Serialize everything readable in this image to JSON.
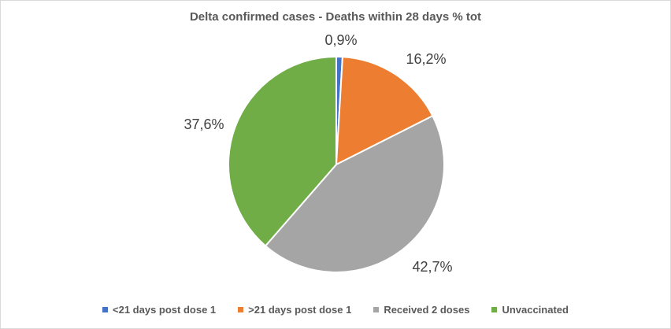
{
  "chart_data": {
    "type": "pie",
    "title": "Delta confirmed cases - Deaths within 28 days % tot",
    "categories": [
      "<21 days post dose 1",
      ">21 days post dose 1",
      "Received 2 doses",
      "Unvaccinated"
    ],
    "values": [
      0.9,
      16.2,
      42.7,
      37.6
    ],
    "data_labels": [
      "0,9%",
      "16,2%",
      "42,7%",
      "37,6%"
    ],
    "colors": [
      "#4472c4",
      "#ed7d31",
      "#a5a5a5",
      "#70ad47"
    ],
    "legend_position": "bottom"
  }
}
